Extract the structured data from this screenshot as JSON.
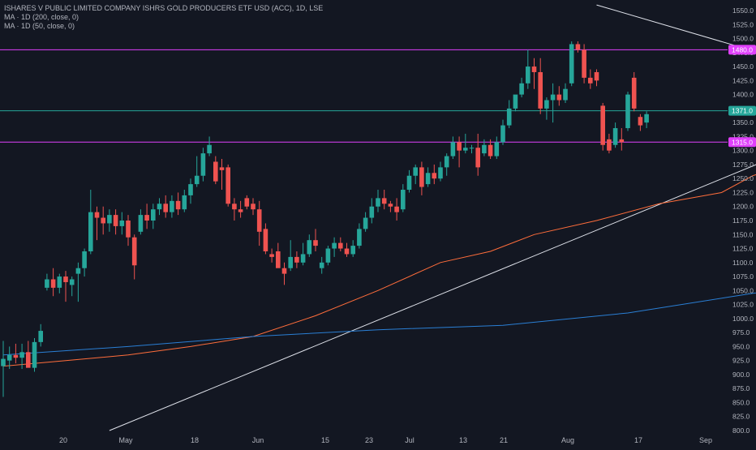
{
  "legend": {
    "title": "ISHARES V PUBLIC LIMITED COMPANY ISHRS GOLD PRODUCERS ETF USD (ACC), 1D, LSE",
    "ma200": "MA · 1D (200, close, 0)",
    "ma50": "MA · 1D (50, close, 0)"
  },
  "colors": {
    "background": "#131722",
    "up": "#26a69a",
    "down": "#ef5350",
    "ma50": "#f7525f",
    "ma200": "#2962ff",
    "level": "#e040fb",
    "current": "#26a69a",
    "trendline": "#e0e3eb",
    "axis_text": "#b2b5be"
  },
  "chart_data": {
    "type": "candlestick",
    "y_axis": {
      "position": "right",
      "range": [
        800,
        1560
      ],
      "tick_step": 25,
      "ticks": [
        800,
        825,
        850,
        875,
        900,
        925,
        950,
        975,
        1000,
        1025,
        1050,
        1075,
        1100,
        1125,
        1150,
        1175,
        1200,
        1225,
        1250,
        1275,
        1300,
        1325,
        1350,
        1375,
        1400,
        1425,
        1450,
        1475,
        1500,
        1525,
        1550
      ]
    },
    "x_axis": {
      "labels": [
        "20",
        "May",
        "18",
        "Jun",
        "15",
        "23",
        "Jul",
        "13",
        "21",
        "Aug",
        "17",
        "Sep"
      ]
    },
    "grid": false,
    "price_levels": [
      {
        "label": "1480.0",
        "value": 1480,
        "role": "level"
      },
      {
        "label": "1371.0",
        "value": 1371,
        "role": "current"
      },
      {
        "label": "1315.0",
        "value": 1315,
        "role": "level"
      }
    ],
    "candles": [
      {
        "o": 915,
        "h": 960,
        "l": 860,
        "c": 928
      },
      {
        "o": 925,
        "h": 950,
        "l": 910,
        "c": 935
      },
      {
        "o": 935,
        "h": 955,
        "l": 920,
        "c": 930
      },
      {
        "o": 930,
        "h": 955,
        "l": 910,
        "c": 940
      },
      {
        "o": 940,
        "h": 960,
        "l": 915,
        "c": 912
      },
      {
        "o": 912,
        "h": 965,
        "l": 905,
        "c": 958
      },
      {
        "o": 958,
        "h": 990,
        "l": 950,
        "c": 978
      },
      {
        "o": 1055,
        "h": 1080,
        "l": 1050,
        "c": 1070
      },
      {
        "o": 1070,
        "h": 1090,
        "l": 1040,
        "c": 1055
      },
      {
        "o": 1055,
        "h": 1080,
        "l": 1045,
        "c": 1075
      },
      {
        "o": 1075,
        "h": 1085,
        "l": 1030,
        "c": 1065
      },
      {
        "o": 1060,
        "h": 1075,
        "l": 1040,
        "c": 1070
      },
      {
        "o": 1080,
        "h": 1100,
        "l": 1030,
        "c": 1090
      },
      {
        "o": 1090,
        "h": 1125,
        "l": 1075,
        "c": 1120
      },
      {
        "o": 1120,
        "h": 1230,
        "l": 1115,
        "c": 1190
      },
      {
        "o": 1190,
        "h": 1200,
        "l": 1140,
        "c": 1180
      },
      {
        "o": 1180,
        "h": 1200,
        "l": 1150,
        "c": 1170
      },
      {
        "o": 1170,
        "h": 1195,
        "l": 1155,
        "c": 1185
      },
      {
        "o": 1185,
        "h": 1195,
        "l": 1150,
        "c": 1165
      },
      {
        "o": 1165,
        "h": 1190,
        "l": 1150,
        "c": 1175
      },
      {
        "o": 1175,
        "h": 1185,
        "l": 1130,
        "c": 1145
      },
      {
        "o": 1145,
        "h": 1150,
        "l": 1070,
        "c": 1095
      },
      {
        "o": 1155,
        "h": 1195,
        "l": 1150,
        "c": 1185
      },
      {
        "o": 1185,
        "h": 1205,
        "l": 1160,
        "c": 1175
      },
      {
        "o": 1175,
        "h": 1205,
        "l": 1160,
        "c": 1195
      },
      {
        "o": 1195,
        "h": 1215,
        "l": 1185,
        "c": 1205
      },
      {
        "o": 1205,
        "h": 1220,
        "l": 1180,
        "c": 1190
      },
      {
        "o": 1190,
        "h": 1220,
        "l": 1180,
        "c": 1210
      },
      {
        "o": 1210,
        "h": 1225,
        "l": 1185,
        "c": 1195
      },
      {
        "o": 1195,
        "h": 1230,
        "l": 1190,
        "c": 1220
      },
      {
        "o": 1220,
        "h": 1250,
        "l": 1205,
        "c": 1240
      },
      {
        "o": 1240,
        "h": 1290,
        "l": 1235,
        "c": 1255
      },
      {
        "o": 1255,
        "h": 1305,
        "l": 1245,
        "c": 1295
      },
      {
        "o": 1295,
        "h": 1325,
        "l": 1290,
        "c": 1310
      },
      {
        "o": 1280,
        "h": 1290,
        "l": 1240,
        "c": 1245
      },
      {
        "o": 1270,
        "h": 1285,
        "l": 1230,
        "c": 1265
      },
      {
        "o": 1270,
        "h": 1275,
        "l": 1200,
        "c": 1205
      },
      {
        "o": 1205,
        "h": 1215,
        "l": 1175,
        "c": 1195
      },
      {
        "o": 1195,
        "h": 1210,
        "l": 1180,
        "c": 1190
      },
      {
        "o": 1215,
        "h": 1220,
        "l": 1195,
        "c": 1200
      },
      {
        "o": 1205,
        "h": 1215,
        "l": 1185,
        "c": 1195
      },
      {
        "o": 1195,
        "h": 1210,
        "l": 1130,
        "c": 1155
      },
      {
        "o": 1160,
        "h": 1170,
        "l": 1115,
        "c": 1120
      },
      {
        "o": 1115,
        "h": 1125,
        "l": 1100,
        "c": 1110
      },
      {
        "o": 1120,
        "h": 1135,
        "l": 1095,
        "c": 1090
      },
      {
        "o": 1090,
        "h": 1100,
        "l": 1060,
        "c": 1080
      },
      {
        "o": 1090,
        "h": 1140,
        "l": 1085,
        "c": 1110
      },
      {
        "o": 1110,
        "h": 1120,
        "l": 1090,
        "c": 1100
      },
      {
        "o": 1100,
        "h": 1135,
        "l": 1095,
        "c": 1115
      },
      {
        "o": 1115,
        "h": 1150,
        "l": 1110,
        "c": 1140
      },
      {
        "o": 1140,
        "h": 1160,
        "l": 1120,
        "c": 1130
      },
      {
        "o": 1090,
        "h": 1110,
        "l": 1080,
        "c": 1100
      },
      {
        "o": 1100,
        "h": 1130,
        "l": 1095,
        "c": 1125
      },
      {
        "o": 1125,
        "h": 1145,
        "l": 1110,
        "c": 1135
      },
      {
        "o": 1135,
        "h": 1145,
        "l": 1120,
        "c": 1125
      },
      {
        "o": 1125,
        "h": 1135,
        "l": 1110,
        "c": 1115
      },
      {
        "o": 1115,
        "h": 1140,
        "l": 1110,
        "c": 1130
      },
      {
        "o": 1130,
        "h": 1170,
        "l": 1125,
        "c": 1160
      },
      {
        "o": 1160,
        "h": 1190,
        "l": 1155,
        "c": 1180
      },
      {
        "o": 1180,
        "h": 1215,
        "l": 1170,
        "c": 1200
      },
      {
        "o": 1200,
        "h": 1230,
        "l": 1190,
        "c": 1215
      },
      {
        "o": 1215,
        "h": 1230,
        "l": 1195,
        "c": 1205
      },
      {
        "o": 1205,
        "h": 1210,
        "l": 1190,
        "c": 1200
      },
      {
        "o": 1200,
        "h": 1215,
        "l": 1175,
        "c": 1190
      },
      {
        "o": 1195,
        "h": 1240,
        "l": 1190,
        "c": 1230
      },
      {
        "o": 1230,
        "h": 1265,
        "l": 1225,
        "c": 1255
      },
      {
        "o": 1255,
        "h": 1275,
        "l": 1240,
        "c": 1270
      },
      {
        "o": 1270,
        "h": 1280,
        "l": 1220,
        "c": 1235
      },
      {
        "o": 1240,
        "h": 1270,
        "l": 1235,
        "c": 1260
      },
      {
        "o": 1260,
        "h": 1275,
        "l": 1240,
        "c": 1250
      },
      {
        "o": 1250,
        "h": 1280,
        "l": 1245,
        "c": 1270
      },
      {
        "o": 1270,
        "h": 1295,
        "l": 1255,
        "c": 1290
      },
      {
        "o": 1290,
        "h": 1325,
        "l": 1285,
        "c": 1315
      },
      {
        "o": 1315,
        "h": 1325,
        "l": 1270,
        "c": 1300
      },
      {
        "o": 1300,
        "h": 1330,
        "l": 1295,
        "c": 1305
      },
      {
        "o": 1305,
        "h": 1310,
        "l": 1295,
        "c": 1305
      },
      {
        "o": 1305,
        "h": 1330,
        "l": 1255,
        "c": 1270
      },
      {
        "o": 1295,
        "h": 1320,
        "l": 1290,
        "c": 1310
      },
      {
        "o": 1310,
        "h": 1320,
        "l": 1285,
        "c": 1290
      },
      {
        "o": 1290,
        "h": 1325,
        "l": 1285,
        "c": 1315
      },
      {
        "o": 1315,
        "h": 1355,
        "l": 1310,
        "c": 1345
      },
      {
        "o": 1345,
        "h": 1390,
        "l": 1340,
        "c": 1375
      },
      {
        "o": 1375,
        "h": 1395,
        "l": 1370,
        "c": 1400
      },
      {
        "o": 1400,
        "h": 1430,
        "l": 1395,
        "c": 1420
      },
      {
        "o": 1420,
        "h": 1480,
        "l": 1410,
        "c": 1450
      },
      {
        "o": 1450,
        "h": 1465,
        "l": 1410,
        "c": 1440
      },
      {
        "o": 1440,
        "h": 1465,
        "l": 1365,
        "c": 1375
      },
      {
        "o": 1375,
        "h": 1395,
        "l": 1355,
        "c": 1390
      },
      {
        "o": 1390,
        "h": 1420,
        "l": 1350,
        "c": 1400
      },
      {
        "o": 1400,
        "h": 1415,
        "l": 1380,
        "c": 1390
      },
      {
        "o": 1390,
        "h": 1420,
        "l": 1385,
        "c": 1410
      },
      {
        "o": 1420,
        "h": 1495,
        "l": 1415,
        "c": 1490
      },
      {
        "o": 1490,
        "h": 1495,
        "l": 1475,
        "c": 1480
      },
      {
        "o": 1480,
        "h": 1490,
        "l": 1420,
        "c": 1430
      },
      {
        "o": 1430,
        "h": 1445,
        "l": 1410,
        "c": 1420
      },
      {
        "o": 1440,
        "h": 1445,
        "l": 1415,
        "c": 1425
      },
      {
        "o": 1380,
        "h": 1385,
        "l": 1300,
        "c": 1310
      },
      {
        "o": 1320,
        "h": 1330,
        "l": 1295,
        "c": 1300
      },
      {
        "o": 1310,
        "h": 1350,
        "l": 1305,
        "c": 1340
      },
      {
        "o": 1320,
        "h": 1340,
        "l": 1300,
        "c": 1315
      },
      {
        "o": 1340,
        "h": 1405,
        "l": 1335,
        "c": 1400
      },
      {
        "o": 1430,
        "h": 1440,
        "l": 1370,
        "c": 1375
      },
      {
        "o": 1360,
        "h": 1365,
        "l": 1335,
        "c": 1345
      },
      {
        "o": 1350,
        "h": 1370,
        "l": 1340,
        "c": 1365
      }
    ],
    "series": [
      {
        "name": "MA · 1D (50, close, 0)",
        "type": "line",
        "values": [
          [
            0,
            915
          ],
          [
            10,
            925
          ],
          [
            20,
            935
          ],
          [
            30,
            950
          ],
          [
            40,
            968
          ],
          [
            50,
            1005
          ],
          [
            60,
            1050
          ],
          [
            70,
            1100
          ],
          [
            78,
            1120
          ],
          [
            85,
            1150
          ],
          [
            95,
            1175
          ],
          [
            105,
            1205
          ],
          [
            115,
            1225
          ],
          [
            120,
            1255
          ],
          [
            130,
            1290
          ],
          [
            135,
            1310
          ]
        ]
      },
      {
        "name": "MA · 1D (200, close, 0)",
        "type": "line",
        "values": [
          [
            0,
            935
          ],
          [
            20,
            950
          ],
          [
            40,
            968
          ],
          [
            60,
            980
          ],
          [
            80,
            988
          ],
          [
            100,
            1010
          ],
          [
            120,
            1045
          ],
          [
            135,
            1068
          ]
        ]
      }
    ],
    "trendlines": [
      {
        "from": [
          17,
          800
        ],
        "to": [
          150,
          1410
        ]
      },
      {
        "from": [
          95,
          1560
        ],
        "to": [
          150,
          1380
        ]
      }
    ]
  }
}
